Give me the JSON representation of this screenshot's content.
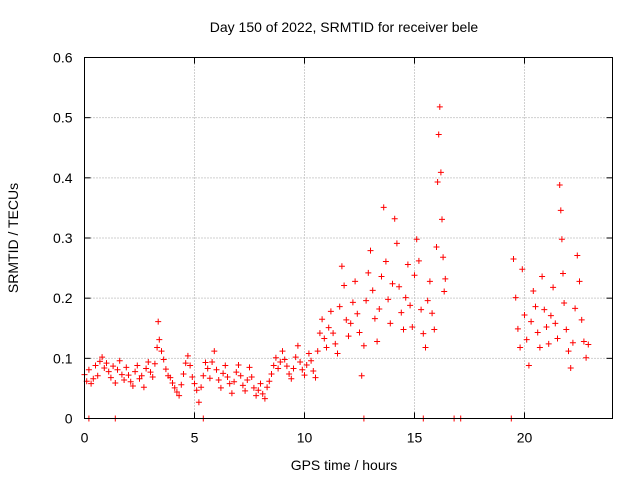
{
  "chart_data": {
    "type": "scatter",
    "title": "Day 150 of 2022, SRMTID for receiver bele",
    "xlabel": "GPS time / hours",
    "ylabel": "SRMTID / TECUs",
    "xlim": [
      0,
      24
    ],
    "ylim": [
      0,
      0.6
    ],
    "x_ticks": [
      0,
      5,
      10,
      15,
      20
    ],
    "x_tick_labels": [
      "0",
      "5",
      "10",
      "15",
      "20"
    ],
    "y_ticks": [
      0,
      0.1,
      0.2,
      0.3,
      0.4,
      0.5,
      0.6
    ],
    "y_tick_labels": [
      "0",
      "0.1",
      "0.2",
      "0.3",
      "0.4",
      "0.5",
      "0.6"
    ],
    "grid": true,
    "marker": "plus",
    "series": [
      {
        "name": "SRMTID",
        "color": "#ff0000",
        "points": [
          [
            0.0,
            0.073
          ],
          [
            0.1,
            0.062
          ],
          [
            0.2,
            0.081
          ],
          [
            0.3,
            0.058
          ],
          [
            0.4,
            0.066
          ],
          [
            0.5,
            0.088
          ],
          [
            0.6,
            0.071
          ],
          [
            0.7,
            0.095
          ],
          [
            0.8,
            0.102
          ],
          [
            0.9,
            0.084
          ],
          [
            1.0,
            0.092
          ],
          [
            1.1,
            0.078
          ],
          [
            1.2,
            0.068
          ],
          [
            1.3,
            0.087
          ],
          [
            1.4,
            0.059
          ],
          [
            1.5,
            0.081
          ],
          [
            1.6,
            0.096
          ],
          [
            1.7,
            0.073
          ],
          [
            1.8,
            0.064
          ],
          [
            1.9,
            0.085
          ],
          [
            2.0,
            0.072
          ],
          [
            2.1,
            0.061
          ],
          [
            2.2,
            0.054
          ],
          [
            2.3,
            0.078
          ],
          [
            2.4,
            0.088
          ],
          [
            2.5,
            0.066
          ],
          [
            2.6,
            0.071
          ],
          [
            2.7,
            0.052
          ],
          [
            2.8,
            0.083
          ],
          [
            2.9,
            0.094
          ],
          [
            3.0,
            0.077
          ],
          [
            3.1,
            0.069
          ],
          [
            3.2,
            0.091
          ],
          [
            3.3,
            0.118
          ],
          [
            3.35,
            0.161
          ],
          [
            3.4,
            0.131
          ],
          [
            3.5,
            0.112
          ],
          [
            3.6,
            0.098
          ],
          [
            3.7,
            0.082
          ],
          [
            3.8,
            0.071
          ],
          [
            3.9,
            0.068
          ],
          [
            4.0,
            0.059
          ],
          [
            4.1,
            0.051
          ],
          [
            4.2,
            0.044
          ],
          [
            4.3,
            0.038
          ],
          [
            4.4,
            0.056
          ],
          [
            4.5,
            0.074
          ],
          [
            4.6,
            0.092
          ],
          [
            4.7,
            0.104
          ],
          [
            4.8,
            0.088
          ],
          [
            4.9,
            0.069
          ],
          [
            5.0,
            0.058
          ],
          [
            5.1,
            0.047
          ],
          [
            5.2,
            0.027
          ],
          [
            5.3,
            0.052
          ],
          [
            5.4,
            0.071
          ],
          [
            5.5,
            0.093
          ],
          [
            5.6,
            0.083
          ],
          [
            5.7,
            0.067
          ],
          [
            5.8,
            0.094
          ],
          [
            5.9,
            0.112
          ],
          [
            6.0,
            0.081
          ],
          [
            6.1,
            0.064
          ],
          [
            6.2,
            0.051
          ],
          [
            6.3,
            0.075
          ],
          [
            6.4,
            0.088
          ],
          [
            6.5,
            0.069
          ],
          [
            6.6,
            0.058
          ],
          [
            6.7,
            0.042
          ],
          [
            6.8,
            0.061
          ],
          [
            6.9,
            0.077
          ],
          [
            7.0,
            0.089
          ],
          [
            7.1,
            0.071
          ],
          [
            7.2,
            0.055
          ],
          [
            7.3,
            0.046
          ],
          [
            7.4,
            0.064
          ],
          [
            7.5,
            0.085
          ],
          [
            7.6,
            0.069
          ],
          [
            7.7,
            0.051
          ],
          [
            7.8,
            0.038
          ],
          [
            7.9,
            0.047
          ],
          [
            8.0,
            0.058
          ],
          [
            8.1,
            0.041
          ],
          [
            8.2,
            0.033
          ],
          [
            8.3,
            0.052
          ],
          [
            8.4,
            0.062
          ],
          [
            8.5,
            0.074
          ],
          [
            8.6,
            0.088
          ],
          [
            8.7,
            0.101
          ],
          [
            8.8,
            0.083
          ],
          [
            8.9,
            0.094
          ],
          [
            9.0,
            0.112
          ],
          [
            9.1,
            0.098
          ],
          [
            9.2,
            0.087
          ],
          [
            9.3,
            0.074
          ],
          [
            9.4,
            0.066
          ],
          [
            9.5,
            0.083
          ],
          [
            9.6,
            0.102
          ],
          [
            9.7,
            0.121
          ],
          [
            9.8,
            0.094
          ],
          [
            9.9,
            0.081
          ],
          [
            10.0,
            0.072
          ],
          [
            10.1,
            0.089
          ],
          [
            10.2,
            0.108
          ],
          [
            10.3,
            0.096
          ],
          [
            10.4,
            0.079
          ],
          [
            10.5,
            0.068
          ],
          [
            10.6,
            0.112
          ],
          [
            10.7,
            0.142
          ],
          [
            10.8,
            0.165
          ],
          [
            10.9,
            0.133
          ],
          [
            11.0,
            0.118
          ],
          [
            11.1,
            0.151
          ],
          [
            11.2,
            0.178
          ],
          [
            11.3,
            0.142
          ],
          [
            11.4,
            0.124
          ],
          [
            11.5,
            0.108
          ],
          [
            11.6,
            0.186
          ],
          [
            11.7,
            0.253
          ],
          [
            11.8,
            0.221
          ],
          [
            11.9,
            0.164
          ],
          [
            12.0,
            0.137
          ],
          [
            12.1,
            0.158
          ],
          [
            12.2,
            0.193
          ],
          [
            12.3,
            0.228
          ],
          [
            12.4,
            0.174
          ],
          [
            12.5,
            0.143
          ],
          [
            12.6,
            0.071
          ],
          [
            12.7,
            0.121
          ],
          [
            12.8,
            0.196
          ],
          [
            12.9,
            0.242
          ],
          [
            13.0,
            0.279
          ],
          [
            13.1,
            0.213
          ],
          [
            13.2,
            0.166
          ],
          [
            13.3,
            0.128
          ],
          [
            13.4,
            0.182
          ],
          [
            13.5,
            0.236
          ],
          [
            13.6,
            0.351
          ],
          [
            13.7,
            0.261
          ],
          [
            13.8,
            0.198
          ],
          [
            13.9,
            0.158
          ],
          [
            14.0,
            0.224
          ],
          [
            14.1,
            0.332
          ],
          [
            14.2,
            0.291
          ],
          [
            14.3,
            0.219
          ],
          [
            14.4,
            0.176
          ],
          [
            14.5,
            0.148
          ],
          [
            14.6,
            0.201
          ],
          [
            14.7,
            0.256
          ],
          [
            14.8,
            0.188
          ],
          [
            14.9,
            0.152
          ],
          [
            15.0,
            0.238
          ],
          [
            15.1,
            0.298
          ],
          [
            15.2,
            0.262
          ],
          [
            15.3,
            0.181
          ],
          [
            15.4,
            0.141
          ],
          [
            15.5,
            0.118
          ],
          [
            15.6,
            0.196
          ],
          [
            15.7,
            0.228
          ],
          [
            15.8,
            0.175
          ],
          [
            15.9,
            0.148
          ],
          [
            16.0,
            0.285
          ],
          [
            16.05,
            0.393
          ],
          [
            16.1,
            0.472
          ],
          [
            16.15,
            0.518
          ],
          [
            16.2,
            0.409
          ],
          [
            16.25,
            0.331
          ],
          [
            16.3,
            0.268
          ],
          [
            16.35,
            0.211
          ],
          [
            16.4,
            0.232
          ],
          [
            0.2,
            0.0
          ],
          [
            1.4,
            0.0
          ],
          [
            5.4,
            0.0
          ],
          [
            12.7,
            0.0
          ],
          [
            15.4,
            0.0
          ],
          [
            16.8,
            0.0
          ],
          [
            17.1,
            0.0
          ],
          [
            19.4,
            0.0
          ],
          [
            19.5,
            0.265
          ],
          [
            19.6,
            0.201
          ],
          [
            19.7,
            0.149
          ],
          [
            19.8,
            0.118
          ],
          [
            19.9,
            0.248
          ],
          [
            20.0,
            0.172
          ],
          [
            20.1,
            0.131
          ],
          [
            20.2,
            0.088
          ],
          [
            20.3,
            0.161
          ],
          [
            20.4,
            0.212
          ],
          [
            20.5,
            0.186
          ],
          [
            20.6,
            0.143
          ],
          [
            20.7,
            0.118
          ],
          [
            20.8,
            0.236
          ],
          [
            20.9,
            0.181
          ],
          [
            21.0,
            0.152
          ],
          [
            21.1,
            0.124
          ],
          [
            21.2,
            0.171
          ],
          [
            21.3,
            0.218
          ],
          [
            21.4,
            0.158
          ],
          [
            21.5,
            0.133
          ],
          [
            21.6,
            0.388
          ],
          [
            21.65,
            0.346
          ],
          [
            21.7,
            0.298
          ],
          [
            21.75,
            0.241
          ],
          [
            21.8,
            0.192
          ],
          [
            21.9,
            0.148
          ],
          [
            22.0,
            0.112
          ],
          [
            22.1,
            0.084
          ],
          [
            22.2,
            0.126
          ],
          [
            22.3,
            0.183
          ],
          [
            22.4,
            0.271
          ],
          [
            22.5,
            0.228
          ],
          [
            22.6,
            0.164
          ],
          [
            22.7,
            0.128
          ],
          [
            22.8,
            0.101
          ],
          [
            22.9,
            0.123
          ]
        ]
      }
    ]
  }
}
